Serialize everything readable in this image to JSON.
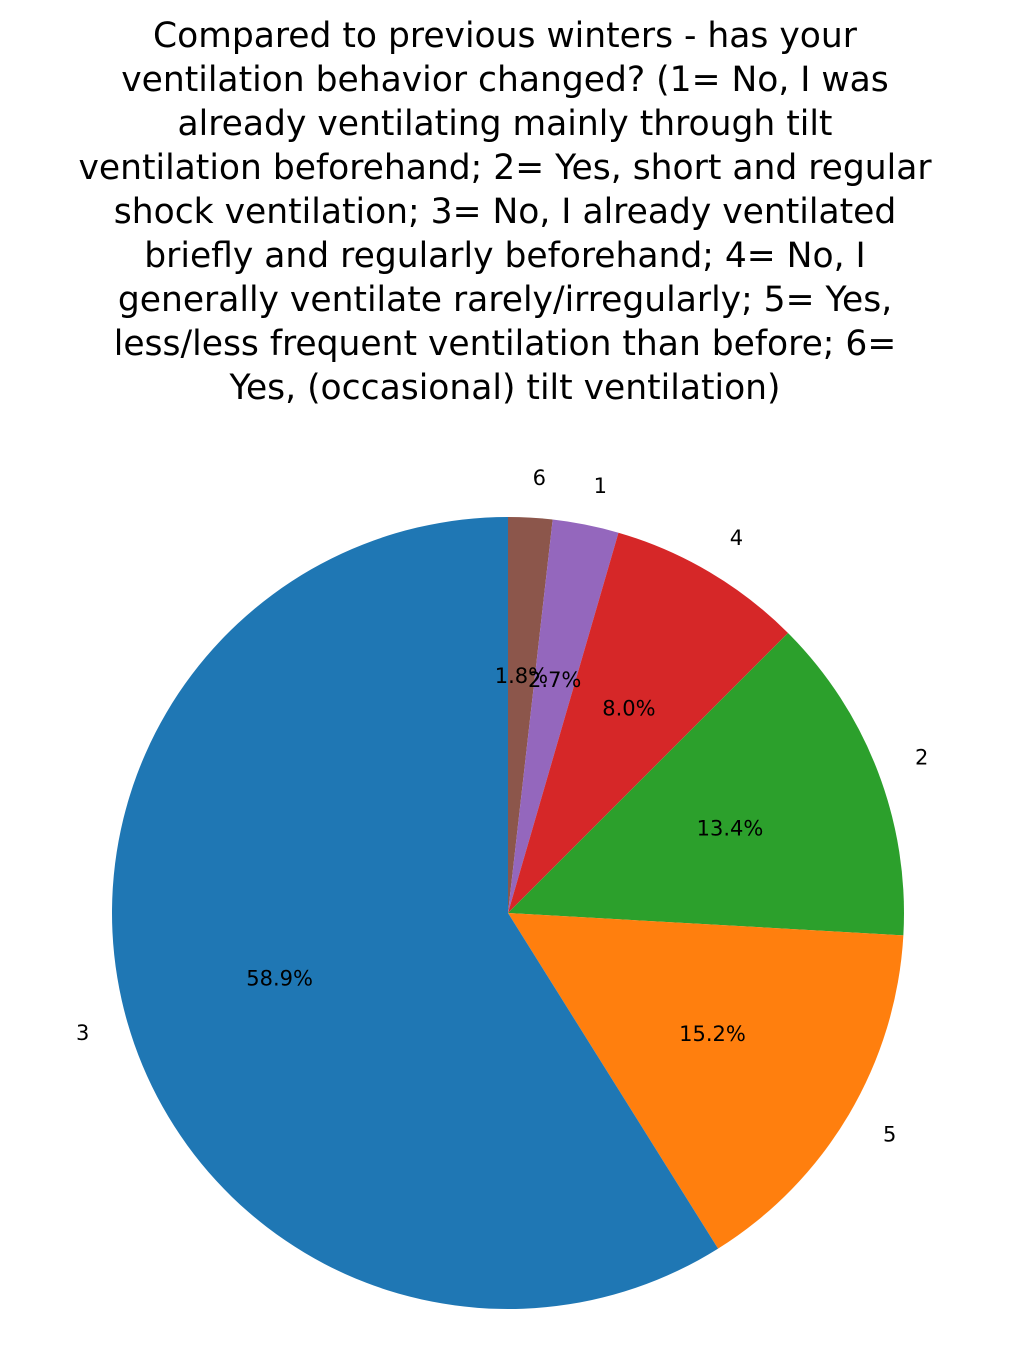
{
  "chart_data": {
    "type": "pie",
    "title_lines": [
      "Compared to previous winters - has your",
      "ventilation behavior changed? (1= No, I was",
      "already ventilating mainly through tilt",
      "ventilation beforehand; 2= Yes, short and regular",
      "shock ventilation; 3= No, I already ventilated",
      "briefly and regularly beforehand; 4= No, I",
      "generally ventilate rarely/irregularly; 5= Yes,",
      "less/less frequent ventilation than before; 6=",
      "Yes, (occasional) tilt ventilation)"
    ],
    "slices": [
      {
        "label": "6",
        "value": 1.8,
        "pct_label": "1.8%",
        "color": "#8c564b"
      },
      {
        "label": "1",
        "value": 2.7,
        "pct_label": "2.7%",
        "color": "#9467bd"
      },
      {
        "label": "4",
        "value": 8.0,
        "pct_label": "8.0%",
        "color": "#d62728"
      },
      {
        "label": "2",
        "value": 13.4,
        "pct_label": "13.4%",
        "color": "#2ca02c"
      },
      {
        "label": "5",
        "value": 15.2,
        "pct_label": "15.2%",
        "color": "#ff7f0e"
      },
      {
        "label": "3",
        "value": 58.9,
        "pct_label": "58.9%",
        "color": "#1f77b4"
      }
    ],
    "start_angle_deg": 90,
    "direction": "clockwise"
  }
}
